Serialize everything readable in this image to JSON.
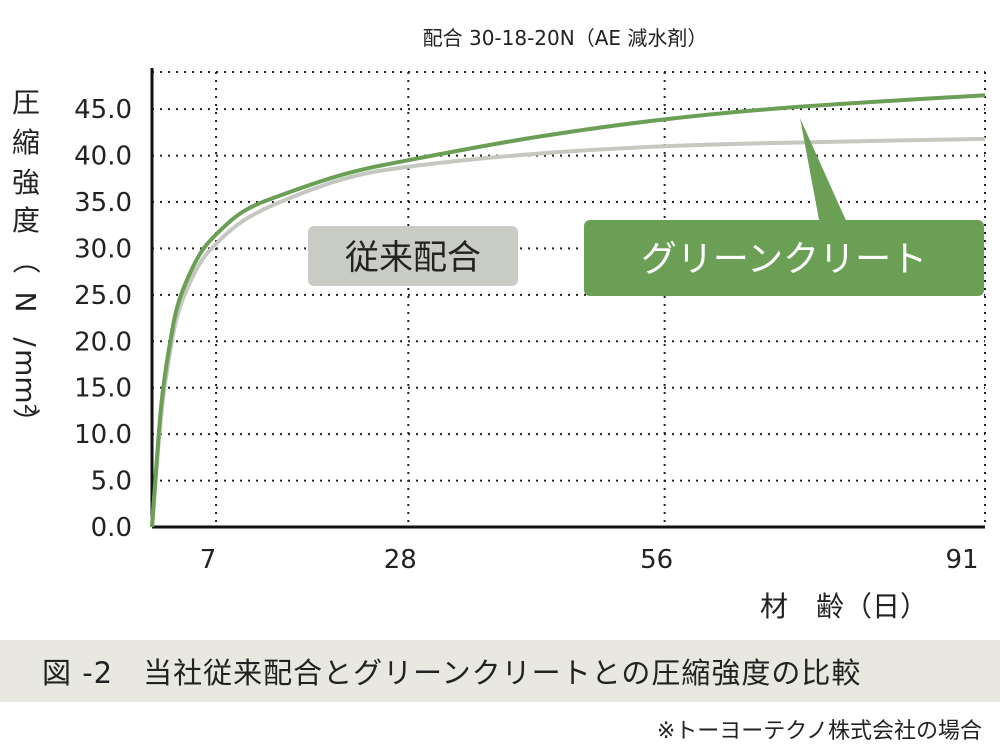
{
  "chart_data": {
    "type": "line",
    "title": "配合 30-18-20N（AE 減水剤）",
    "ylabel_chars": [
      "圧",
      "縮",
      "強",
      "度",
      "（",
      "N",
      "/",
      "mm²",
      "）"
    ],
    "ylabel": "圧縮強度（N/mm²）",
    "xlabel": "材　齢（日）",
    "x_ticks": [
      7,
      28,
      56,
      91
    ],
    "y_ticks": [
      "0.0",
      "5.0",
      "10.0",
      "15.0",
      "20.0",
      "25.0",
      "30.0",
      "35.0",
      "40.0",
      "45.0"
    ],
    "ylim": [
      0,
      49
    ],
    "xlim": [
      0,
      91
    ],
    "grid": true,
    "series": [
      {
        "name": "従来配合",
        "color": "#c4c8c0",
        "x": [
          0,
          1,
          2,
          3,
          5,
          7,
          10,
          14,
          21,
          28,
          42,
          56,
          70,
          91
        ],
        "y": [
          0,
          12,
          19,
          23.5,
          28,
          30.5,
          33,
          35,
          37.5,
          38.8,
          40.2,
          41.0,
          41.4,
          41.8
        ]
      },
      {
        "name": "グリーンクリート",
        "color": "#6a9f55",
        "x": [
          0,
          1,
          2,
          3,
          5,
          7,
          10,
          14,
          21,
          28,
          42,
          56,
          70,
          91
        ],
        "y": [
          0,
          13,
          20,
          24.5,
          29,
          31.5,
          34,
          35.7,
          38.0,
          39.5,
          42.0,
          43.9,
          45.2,
          46.5
        ]
      }
    ],
    "callouts": [
      {
        "label": "従来配合",
        "fill": "#c9ccc4"
      },
      {
        "label": "グリーンクリート",
        "fill": "#6a9f55"
      }
    ]
  },
  "caption": "図 -2　当社従来配合とグリーンクリートとの圧縮強度の比較",
  "footnote": "※トーヨーテクノ株式会社の場合"
}
